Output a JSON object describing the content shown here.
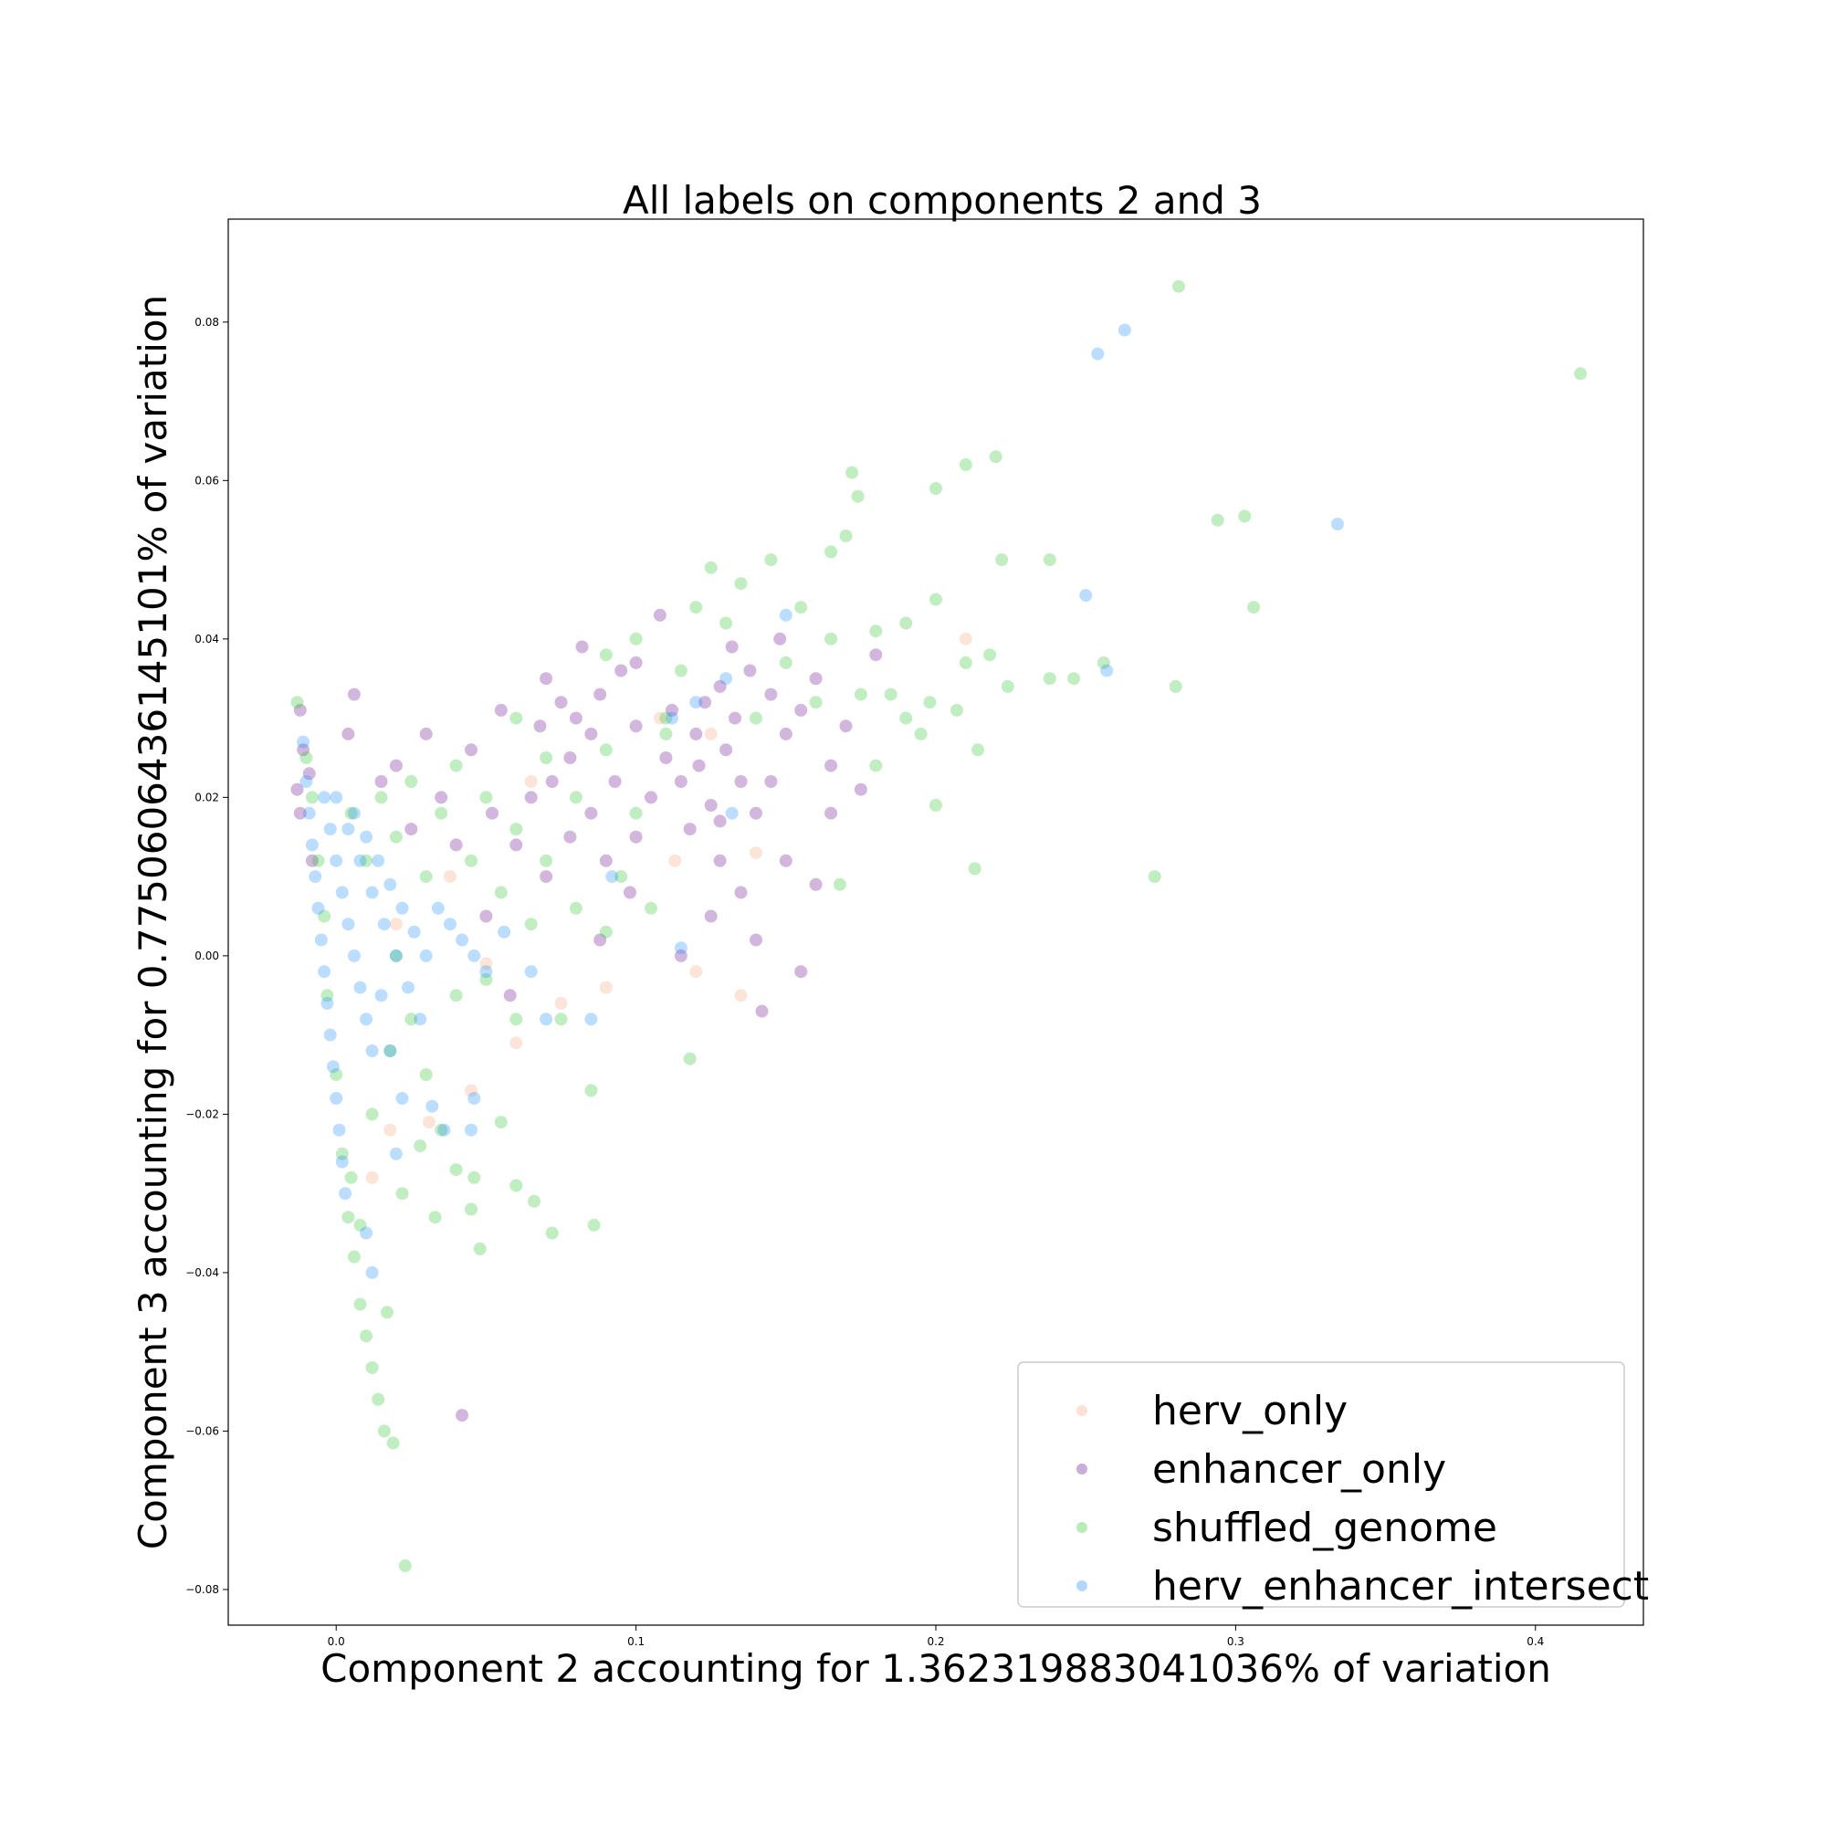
{
  "chart_data": {
    "type": "scatter",
    "title": "All labels on components 2 and 3",
    "xlabel": "Component 2 accounting for 1.362319883041036% of variation",
    "ylabel": "Component 3 accounting for 0.7750606436145101% of variation",
    "xlim": [
      -0.036,
      0.436
    ],
    "ylim": [
      -0.0845,
      0.093
    ],
    "xticks": [
      0.0,
      0.1,
      0.2,
      0.3,
      0.4
    ],
    "xtick_labels": [
      "0.0",
      "0.1",
      "0.2",
      "0.3",
      "0.4"
    ],
    "yticks": [
      -0.08,
      -0.06,
      -0.04,
      -0.02,
      0.0,
      0.02,
      0.04,
      0.06,
      0.08
    ],
    "ytick_labels": [
      "−0.08",
      "−0.06",
      "−0.04",
      "−0.02",
      "0.00",
      "0.02",
      "0.04",
      "0.06",
      "0.08"
    ],
    "grid": false,
    "legend_position": "bottom-right",
    "series": [
      {
        "name": "herv_only",
        "color": "#f4a582",
        "points": [
          [
            0.012,
            -0.028
          ],
          [
            0.018,
            -0.022
          ],
          [
            0.031,
            -0.021
          ],
          [
            0.045,
            -0.017
          ],
          [
            0.06,
            -0.011
          ],
          [
            0.075,
            -0.006
          ],
          [
            0.09,
            -0.004
          ],
          [
            0.108,
            0.03
          ],
          [
            0.125,
            0.028
          ],
          [
            0.14,
            0.013
          ],
          [
            0.12,
            -0.002
          ],
          [
            0.113,
            0.012
          ],
          [
            0.135,
            -0.005
          ],
          [
            0.21,
            0.04
          ],
          [
            0.05,
            -0.001
          ],
          [
            0.02,
            0.004
          ],
          [
            0.038,
            0.01
          ],
          [
            0.065,
            0.022
          ]
        ]
      },
      {
        "name": "enhancer_only",
        "color": "#6a0d91",
        "points": [
          [
            -0.012,
            0.031
          ],
          [
            -0.011,
            0.026
          ],
          [
            -0.009,
            0.023
          ],
          [
            -0.013,
            0.021
          ],
          [
            -0.012,
            0.018
          ],
          [
            -0.008,
            0.012
          ],
          [
            0.004,
            0.028
          ],
          [
            0.02,
            0.024
          ],
          [
            0.03,
            0.028
          ],
          [
            0.045,
            0.026
          ],
          [
            0.055,
            0.031
          ],
          [
            0.068,
            0.029
          ],
          [
            0.07,
            0.035
          ],
          [
            0.075,
            0.032
          ],
          [
            0.08,
            0.03
          ],
          [
            0.078,
            0.025
          ],
          [
            0.072,
            0.022
          ],
          [
            0.085,
            0.028
          ],
          [
            0.088,
            0.033
          ],
          [
            0.095,
            0.036
          ],
          [
            0.1,
            0.037
          ],
          [
            0.082,
            0.039
          ],
          [
            0.065,
            0.02
          ],
          [
            0.06,
            0.014
          ],
          [
            0.085,
            0.018
          ],
          [
            0.09,
            0.012
          ],
          [
            0.1,
            0.015
          ],
          [
            0.105,
            0.02
          ],
          [
            0.11,
            0.025
          ],
          [
            0.115,
            0.022
          ],
          [
            0.12,
            0.028
          ],
          [
            0.123,
            0.032
          ],
          [
            0.128,
            0.034
          ],
          [
            0.13,
            0.026
          ],
          [
            0.135,
            0.022
          ],
          [
            0.14,
            0.018
          ],
          [
            0.125,
            0.019
          ],
          [
            0.128,
            0.012
          ],
          [
            0.133,
            0.03
          ],
          [
            0.138,
            0.036
          ],
          [
            0.145,
            0.033
          ],
          [
            0.15,
            0.028
          ],
          [
            0.155,
            0.031
          ],
          [
            0.16,
            0.035
          ],
          [
            0.145,
            0.022
          ],
          [
            0.15,
            0.012
          ],
          [
            0.135,
            0.008
          ],
          [
            0.125,
            0.005
          ],
          [
            0.14,
            0.002
          ],
          [
            0.16,
            0.009
          ],
          [
            0.165,
            0.024
          ],
          [
            0.17,
            0.029
          ],
          [
            0.175,
            0.021
          ],
          [
            0.18,
            0.038
          ],
          [
            0.04,
            0.014
          ],
          [
            0.05,
            0.005
          ],
          [
            0.058,
            -0.005
          ],
          [
            0.042,
            -0.058
          ],
          [
            0.115,
            0.0
          ],
          [
            0.142,
            -0.007
          ],
          [
            0.155,
            -0.002
          ],
          [
            0.108,
            0.043
          ],
          [
            0.1,
            0.029
          ],
          [
            0.093,
            0.022
          ],
          [
            0.078,
            0.015
          ],
          [
            0.112,
            0.031
          ],
          [
            0.132,
            0.039
          ],
          [
            0.118,
            0.016
          ],
          [
            0.098,
            0.008
          ],
          [
            0.088,
            0.002
          ],
          [
            0.07,
            0.01
          ],
          [
            0.052,
            0.018
          ],
          [
            0.035,
            0.02
          ],
          [
            0.025,
            0.016
          ],
          [
            0.015,
            0.022
          ],
          [
            0.006,
            0.033
          ],
          [
            0.148,
            0.04
          ],
          [
            0.165,
            0.018
          ],
          [
            0.128,
            0.017
          ],
          [
            0.121,
            0.024
          ]
        ]
      },
      {
        "name": "shuffled_genome",
        "color": "#32c832",
        "points": [
          [
            -0.013,
            0.032
          ],
          [
            -0.01,
            0.025
          ],
          [
            -0.008,
            0.02
          ],
          [
            -0.006,
            0.012
          ],
          [
            -0.004,
            0.005
          ],
          [
            -0.003,
            -0.005
          ],
          [
            0.0,
            -0.015
          ],
          [
            0.002,
            -0.025
          ],
          [
            0.004,
            -0.033
          ],
          [
            0.006,
            -0.038
          ],
          [
            0.008,
            -0.044
          ],
          [
            0.01,
            -0.048
          ],
          [
            0.012,
            -0.052
          ],
          [
            0.014,
            -0.056
          ],
          [
            0.016,
            -0.06
          ],
          [
            0.019,
            -0.0615
          ],
          [
            0.023,
            -0.077
          ],
          [
            0.005,
            0.018
          ],
          [
            0.01,
            0.012
          ],
          [
            0.015,
            0.02
          ],
          [
            0.02,
            0.015
          ],
          [
            0.025,
            0.022
          ],
          [
            0.03,
            0.01
          ],
          [
            0.035,
            0.018
          ],
          [
            0.04,
            0.024
          ],
          [
            0.045,
            0.012
          ],
          [
            0.05,
            0.02
          ],
          [
            0.055,
            0.008
          ],
          [
            0.06,
            0.016
          ],
          [
            0.065,
            0.004
          ],
          [
            0.07,
            0.012
          ],
          [
            0.02,
            0.0
          ],
          [
            0.025,
            -0.008
          ],
          [
            0.03,
            -0.015
          ],
          [
            0.035,
            -0.022
          ],
          [
            0.04,
            -0.027
          ],
          [
            0.045,
            -0.032
          ],
          [
            0.048,
            -0.037
          ],
          [
            0.055,
            -0.021
          ],
          [
            0.06,
            -0.029
          ],
          [
            0.066,
            -0.031
          ],
          [
            0.072,
            -0.035
          ],
          [
            0.086,
            -0.034
          ],
          [
            0.04,
            -0.005
          ],
          [
            0.05,
            -0.003
          ],
          [
            0.06,
            -0.008
          ],
          [
            0.075,
            -0.008
          ],
          [
            0.08,
            0.006
          ],
          [
            0.085,
            -0.017
          ],
          [
            0.09,
            0.003
          ],
          [
            0.095,
            0.01
          ],
          [
            0.1,
            0.018
          ],
          [
            0.105,
            0.006
          ],
          [
            0.11,
            0.03
          ],
          [
            0.115,
            0.036
          ],
          [
            0.118,
            -0.013
          ],
          [
            0.12,
            0.044
          ],
          [
            0.125,
            0.049
          ],
          [
            0.13,
            0.042
          ],
          [
            0.135,
            0.047
          ],
          [
            0.14,
            0.03
          ],
          [
            0.145,
            0.05
          ],
          [
            0.15,
            0.037
          ],
          [
            0.155,
            0.044
          ],
          [
            0.16,
            0.032
          ],
          [
            0.165,
            0.051
          ],
          [
            0.17,
            0.053
          ],
          [
            0.172,
            0.061
          ],
          [
            0.174,
            0.058
          ],
          [
            0.18,
            0.041
          ],
          [
            0.185,
            0.033
          ],
          [
            0.19,
            0.042
          ],
          [
            0.195,
            0.028
          ],
          [
            0.198,
            0.032
          ],
          [
            0.2,
            0.045
          ],
          [
            0.2,
            0.019
          ],
          [
            0.2,
            0.059
          ],
          [
            0.207,
            0.031
          ],
          [
            0.21,
            0.037
          ],
          [
            0.213,
            0.011
          ],
          [
            0.214,
            0.026
          ],
          [
            0.218,
            0.038
          ],
          [
            0.22,
            0.063
          ],
          [
            0.222,
            0.05
          ],
          [
            0.224,
            0.034
          ],
          [
            0.21,
            0.062
          ],
          [
            0.238,
            0.05
          ],
          [
            0.238,
            0.035
          ],
          [
            0.246,
            0.035
          ],
          [
            0.256,
            0.037
          ],
          [
            0.273,
            0.01
          ],
          [
            0.28,
            0.034
          ],
          [
            0.281,
            0.0845
          ],
          [
            0.294,
            0.055
          ],
          [
            0.303,
            0.0555
          ],
          [
            0.306,
            0.044
          ],
          [
            0.415,
            0.0735
          ],
          [
            0.09,
            0.038
          ],
          [
            0.1,
            0.04
          ],
          [
            0.11,
            0.028
          ],
          [
            0.165,
            0.04
          ],
          [
            0.175,
            0.033
          ],
          [
            0.18,
            0.024
          ],
          [
            0.19,
            0.03
          ],
          [
            0.168,
            0.009
          ],
          [
            0.06,
            0.03
          ],
          [
            0.07,
            0.025
          ],
          [
            0.08,
            0.02
          ],
          [
            0.09,
            0.026
          ],
          [
            0.005,
            -0.028
          ],
          [
            0.008,
            -0.034
          ],
          [
            0.012,
            -0.02
          ],
          [
            0.018,
            -0.012
          ],
          [
            0.022,
            -0.03
          ],
          [
            0.028,
            -0.024
          ],
          [
            0.033,
            -0.033
          ],
          [
            0.017,
            -0.045
          ],
          [
            0.046,
            -0.028
          ]
        ]
      },
      {
        "name": "herv_enhancer_intersect",
        "color": "#1e90ff",
        "points": [
          [
            -0.011,
            0.027
          ],
          [
            -0.01,
            0.022
          ],
          [
            -0.009,
            0.018
          ],
          [
            -0.008,
            0.014
          ],
          [
            -0.007,
            0.01
          ],
          [
            -0.006,
            0.006
          ],
          [
            -0.005,
            0.002
          ],
          [
            -0.004,
            -0.002
          ],
          [
            -0.003,
            -0.006
          ],
          [
            -0.002,
            -0.01
          ],
          [
            -0.001,
            -0.014
          ],
          [
            0.0,
            -0.018
          ],
          [
            0.001,
            -0.022
          ],
          [
            0.002,
            -0.026
          ],
          [
            0.003,
            -0.03
          ],
          [
            -0.004,
            0.02
          ],
          [
            -0.002,
            0.016
          ],
          [
            0.0,
            0.012
          ],
          [
            0.002,
            0.008
          ],
          [
            0.004,
            0.004
          ],
          [
            0.006,
            0.0
          ],
          [
            0.008,
            -0.004
          ],
          [
            0.01,
            -0.008
          ],
          [
            0.012,
            -0.012
          ],
          [
            0.0,
            0.02
          ],
          [
            0.004,
            0.016
          ],
          [
            0.008,
            0.012
          ],
          [
            0.012,
            0.008
          ],
          [
            0.016,
            0.004
          ],
          [
            0.02,
            0.0
          ],
          [
            0.024,
            -0.004
          ],
          [
            0.028,
            -0.008
          ],
          [
            0.006,
            0.018
          ],
          [
            0.01,
            0.015
          ],
          [
            0.014,
            0.012
          ],
          [
            0.018,
            0.009
          ],
          [
            0.022,
            0.006
          ],
          [
            0.026,
            0.003
          ],
          [
            0.03,
            0.0
          ],
          [
            0.034,
            0.006
          ],
          [
            0.038,
            0.004
          ],
          [
            0.042,
            0.002
          ],
          [
            0.046,
            0.0
          ],
          [
            0.05,
            -0.002
          ],
          [
            0.015,
            -0.005
          ],
          [
            0.018,
            -0.012
          ],
          [
            0.022,
            -0.018
          ],
          [
            0.02,
            -0.025
          ],
          [
            0.032,
            -0.019
          ],
          [
            0.036,
            -0.022
          ],
          [
            0.045,
            -0.022
          ],
          [
            0.046,
            -0.018
          ],
          [
            0.01,
            -0.035
          ],
          [
            0.012,
            -0.04
          ],
          [
            0.056,
            0.003
          ],
          [
            0.065,
            -0.002
          ],
          [
            0.07,
            -0.008
          ],
          [
            0.085,
            -0.008
          ],
          [
            0.092,
            0.01
          ],
          [
            0.115,
            0.001
          ],
          [
            0.112,
            0.03
          ],
          [
            0.12,
            0.032
          ],
          [
            0.13,
            0.035
          ],
          [
            0.132,
            0.018
          ],
          [
            0.15,
            0.043
          ],
          [
            0.25,
            0.0455
          ],
          [
            0.254,
            0.076
          ],
          [
            0.257,
            0.036
          ],
          [
            0.263,
            0.079
          ],
          [
            0.334,
            0.0545
          ]
        ]
      }
    ]
  }
}
